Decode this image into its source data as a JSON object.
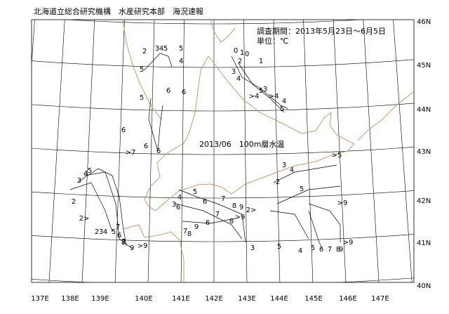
{
  "header": {
    "org": "北海道立総合研究機構　水産研究本部　海況速報",
    "period": "調査期間：2013年5月23日～6月5日",
    "unit": "単位：℃"
  },
  "map": {
    "title": "2013/06　100m層水温",
    "lon_labels": [
      "137E",
      "138E",
      "139E",
      "140E",
      "141E",
      "142E",
      "143E",
      "144E",
      "145E",
      "146E",
      "147E"
    ],
    "lat_labels": [
      "40N",
      "41N",
      "42N",
      "43N",
      "44N",
      "45N",
      "46N"
    ],
    "contour_labels": [
      "2",
      "3",
      "4",
      "5",
      "5",
      "4",
      "5",
      "6",
      "5",
      "6",
      "6",
      ">7",
      "6",
      "6",
      "3",
      "4",
      "5",
      "2",
      "2>",
      "2",
      "3",
      "4",
      "5",
      "6",
      "7",
      "9",
      ">9",
      "7",
      "8",
      "0",
      "1",
      "0",
      "1",
      "2",
      "3",
      "4",
      ">4",
      "5",
      ">4",
      "3",
      "4",
      "5",
      "6",
      "7",
      "8",
      "9",
      "6",
      "7",
      "8",
      "2>",
      "3",
      "4",
      "5",
      "6",
      "7",
      "8",
      "9",
      ">9",
      "2",
      "3",
      "4",
      "5",
      ">5",
      "3",
      "5",
      ">9",
      "4",
      "5",
      "6",
      "7",
      "8",
      "9",
      ">9"
    ]
  }
}
